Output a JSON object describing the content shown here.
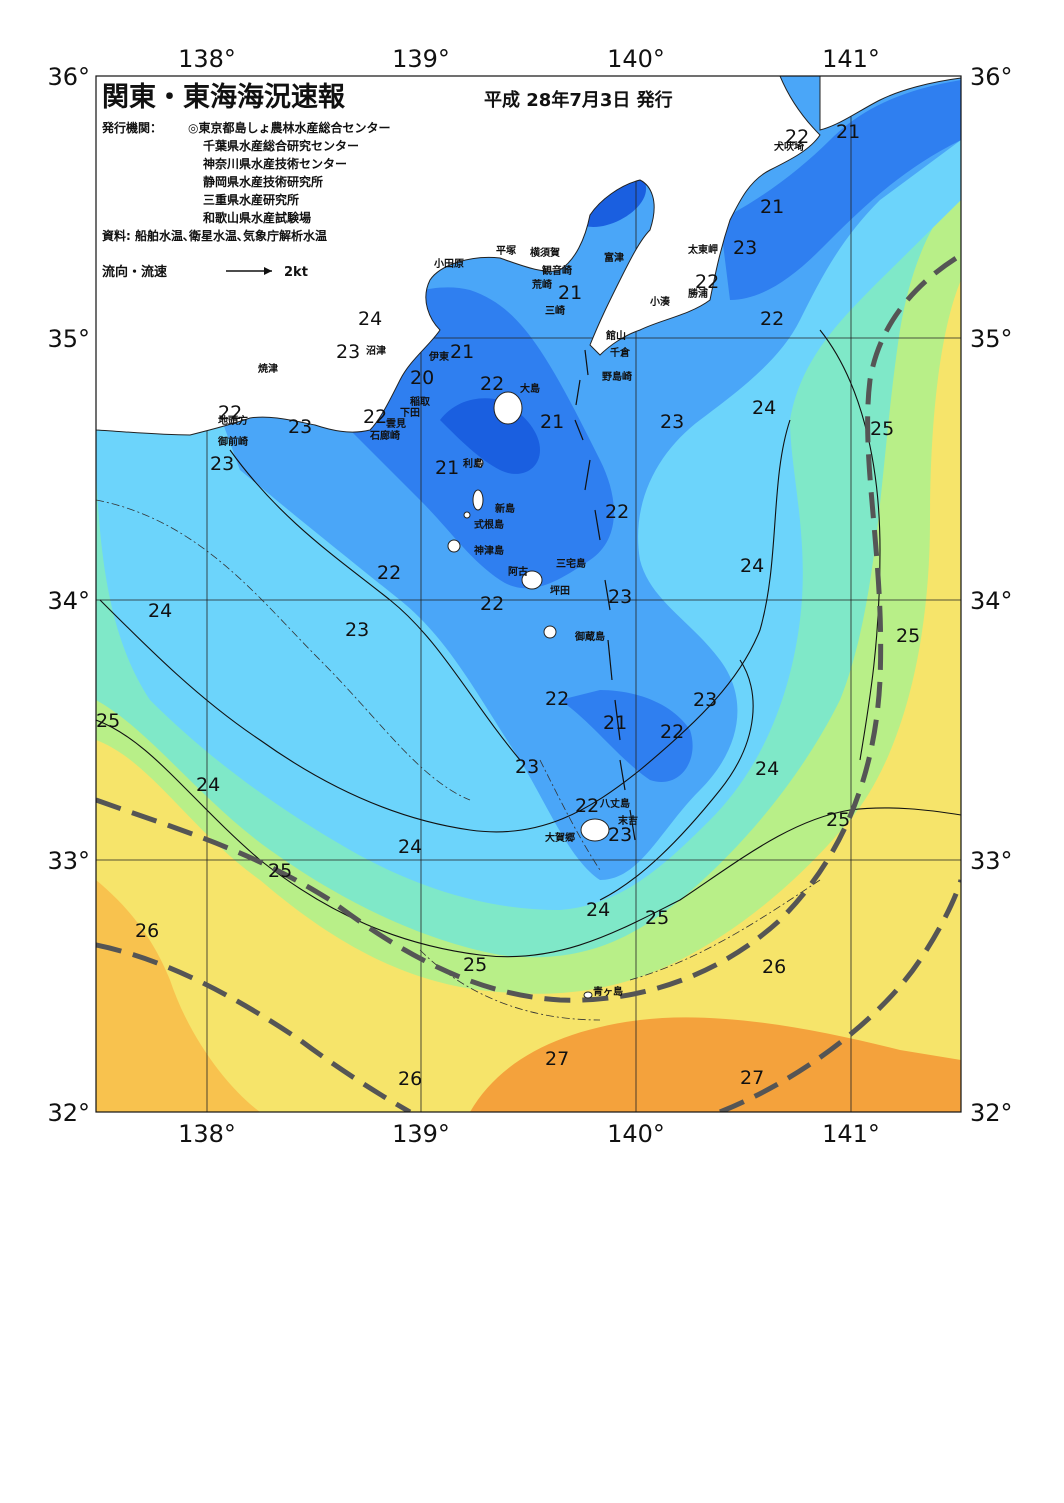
{
  "title": "関東・東海海況速報",
  "issue_date": "平成 28年7月3日 発行",
  "issuers_label": "発行機関：",
  "issuers": [
    "◎東京都島しょ農林水産総合センター",
    "千葉県水産総合研究センター",
    "神奈川県水産技術センター",
    "静岡県水産技術研究所",
    "三重県水産研究所",
    "和歌山県水産試験場"
  ],
  "sources": "資料: 船舶水温､衛星水温､気象庁解析水温",
  "legend": {
    "label": "流向・流速",
    "scale": "2kt"
  },
  "axes": {
    "longitudes": [
      "138°",
      "139°",
      "140°",
      "141°"
    ],
    "latitudes": [
      "36°",
      "35°",
      "34°",
      "33°",
      "32°"
    ]
  },
  "temperature_labels": [
    "20",
    "21",
    "22",
    "23",
    "24",
    "25",
    "26",
    "27"
  ],
  "places": [
    "犬吠埼",
    "太東岬",
    "勝浦",
    "小湊",
    "富津",
    "観音崎",
    "横須賀",
    "平塚",
    "小田原",
    "荒崎",
    "三崎",
    "館山",
    "千倉",
    "野島崎",
    "沼津",
    "焼津",
    "伊東",
    "稲取",
    "下田",
    "石廊崎",
    "御前崎",
    "地頭方",
    "大島",
    "利島",
    "新島",
    "式根島",
    "神津島",
    "三宅島",
    "阿古",
    "坪田",
    "御蔵島",
    "八丈島",
    "末吉",
    "大賀郷",
    "青ヶ島",
    "雲見"
  ],
  "colors": {
    "t20": "#1a5fe0",
    "t21": "#2f7ff0",
    "t22": "#4aa6f8",
    "t23": "#6cd4fb",
    "t24": "#7fe8c8",
    "t25": "#b8ef88",
    "t26": "#f6e46a",
    "t27": "#f4a23c",
    "front": "#555555",
    "land": "#ffffff"
  }
}
